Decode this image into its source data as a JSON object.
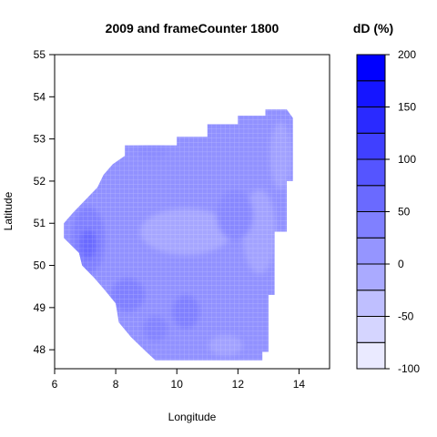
{
  "chart_data": {
    "type": "heatmap",
    "title": "2009 and frameCounter 1800",
    "xlabel": "Longitude",
    "ylabel": "Latitude",
    "xlim": [
      6,
      15
    ],
    "ylim": [
      47.55,
      55
    ],
    "x_ticks": [
      6,
      8,
      10,
      12,
      14
    ],
    "y_ticks": [
      48,
      49,
      50,
      51,
      52,
      53,
      54,
      55
    ],
    "grid": false,
    "colorbar": {
      "title": "dD (%)",
      "range": [
        -100,
        200
      ],
      "step": 25,
      "ticks": [
        -100,
        -50,
        0,
        50,
        100,
        150,
        200
      ],
      "low_color": "#ffffff",
      "high_color": "#0000ff"
    },
    "region_outline": [
      [
        9.5,
        47.75
      ],
      [
        12.8,
        47.75
      ],
      [
        12.8,
        47.95
      ],
      [
        13.0,
        47.95
      ],
      [
        13.0,
        49.3
      ],
      [
        13.2,
        49.3
      ],
      [
        13.2,
        50.8
      ],
      [
        13.6,
        50.8
      ],
      [
        13.6,
        52.0
      ],
      [
        13.8,
        52.0
      ],
      [
        13.8,
        53.5
      ],
      [
        13.6,
        53.7
      ],
      [
        12.9,
        53.7
      ],
      [
        12.9,
        53.55
      ],
      [
        12.0,
        53.55
      ],
      [
        12.0,
        53.35
      ],
      [
        11.0,
        53.35
      ],
      [
        11.0,
        53.05
      ],
      [
        10.0,
        53.05
      ],
      [
        10.0,
        52.85
      ],
      [
        8.3,
        52.85
      ],
      [
        8.3,
        52.6
      ],
      [
        7.9,
        52.4
      ],
      [
        7.6,
        52.15
      ],
      [
        7.4,
        51.85
      ],
      [
        6.6,
        51.25
      ],
      [
        6.3,
        51.0
      ],
      [
        6.3,
        50.65
      ],
      [
        6.8,
        50.3
      ],
      [
        6.9,
        50.0
      ],
      [
        7.3,
        49.7
      ],
      [
        7.6,
        49.45
      ],
      [
        8.0,
        49.1
      ],
      [
        8.1,
        48.65
      ],
      [
        8.5,
        48.3
      ],
      [
        9.0,
        47.95
      ],
      [
        9.3,
        47.75
      ]
    ],
    "blobs": [
      {
        "x": 10.3,
        "y": 50.8,
        "rx": 1.5,
        "ry": 0.55,
        "value": 5
      },
      {
        "x": 12.7,
        "y": 50.8,
        "rx": 0.55,
        "ry": 1.0,
        "value": 10
      },
      {
        "x": 13.4,
        "y": 52.6,
        "rx": 0.35,
        "ry": 0.8,
        "value": 10
      },
      {
        "x": 11.6,
        "y": 48.1,
        "rx": 0.55,
        "ry": 0.25,
        "value": 10
      },
      {
        "x": 7.1,
        "y": 50.6,
        "rx": 0.55,
        "ry": 0.8,
        "value": 50
      },
      {
        "x": 7.1,
        "y": 50.5,
        "rx": 0.28,
        "ry": 0.35,
        "value": 75
      },
      {
        "x": 8.4,
        "y": 49.3,
        "rx": 0.55,
        "ry": 0.4,
        "value": 50
      },
      {
        "x": 10.3,
        "y": 48.9,
        "rx": 0.45,
        "ry": 0.4,
        "value": 50
      },
      {
        "x": 9.3,
        "y": 48.5,
        "rx": 0.4,
        "ry": 0.3,
        "value": 45
      },
      {
        "x": 11.9,
        "y": 51.2,
        "rx": 0.6,
        "ry": 0.6,
        "value": 40
      },
      {
        "x": 9.2,
        "y": 52.7,
        "rx": 0.5,
        "ry": 0.2,
        "value": 35
      }
    ],
    "base_value": 30
  }
}
